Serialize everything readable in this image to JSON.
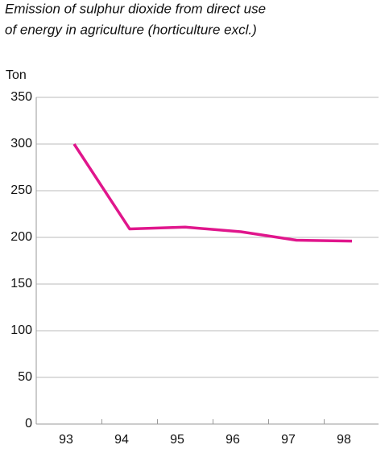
{
  "chart_data": {
    "type": "line",
    "title": "Emission of sulphur dioxide from direct use of energy in agriculture (horticulture excl.)",
    "title_lines": [
      "Emission of sulphur dioxide from direct use",
      "of energy in agriculture (horticulture excl.)"
    ],
    "y_label": "Ton",
    "categories": [
      "93",
      "94",
      "95",
      "96",
      "97",
      "98"
    ],
    "series": [
      {
        "name": "Sulphur dioxide",
        "color": "#e0168c",
        "values": [
          300,
          209,
          211,
          206,
          197,
          196
        ]
      }
    ],
    "ylim": [
      0,
      350
    ],
    "yticks": [
      0,
      50,
      100,
      150,
      200,
      250,
      300,
      350
    ],
    "grid": true,
    "legend": false
  }
}
